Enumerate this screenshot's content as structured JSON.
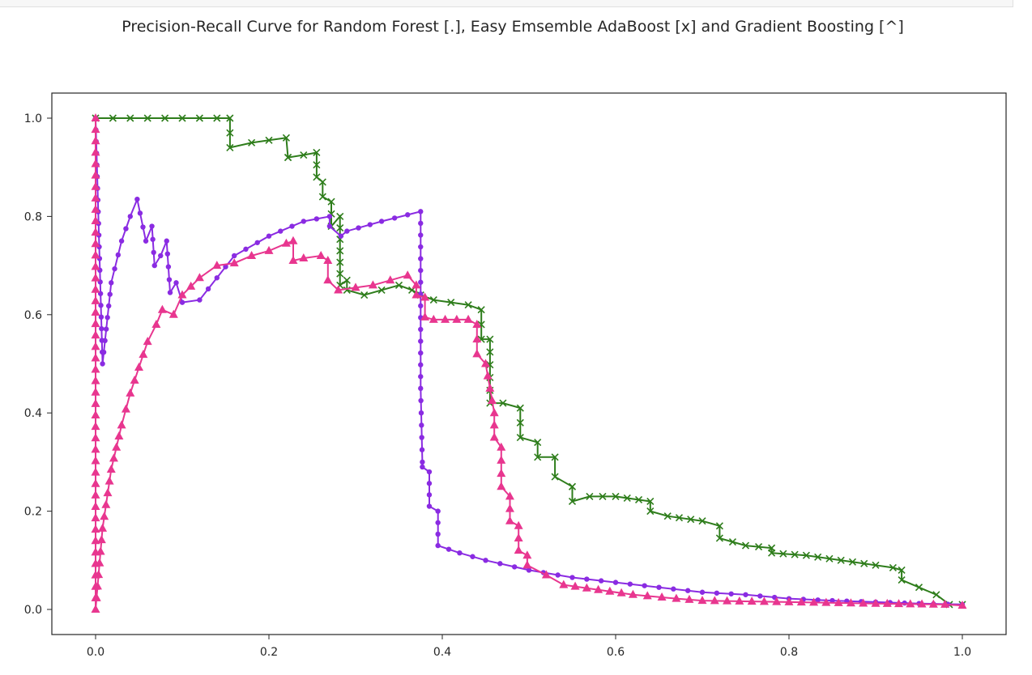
{
  "chart_data": {
    "type": "line",
    "title": "Precision-Recall Curve for Random Forest [.], Easy Emsemble AdaBoost [x] and Gradient Boosting [^]",
    "xlabel": "",
    "ylabel": "",
    "xlim": [
      -0.05,
      1.05
    ],
    "ylim": [
      -0.05,
      1.05
    ],
    "xticks": [
      "0.0",
      "0.2",
      "0.4",
      "0.6",
      "0.8",
      "1.0"
    ],
    "yticks": [
      "0.0",
      "0.2",
      "0.4",
      "0.6",
      "0.8",
      "1.0"
    ],
    "grid": false,
    "series": [
      {
        "marker": "x",
        "color": "#2e7d1b",
        "x": [
          0.0,
          0.02,
          0.04,
          0.06,
          0.08,
          0.1,
          0.12,
          0.14,
          0.155,
          0.155,
          0.18,
          0.2,
          0.22,
          0.222,
          0.222,
          0.24,
          0.255,
          0.255,
          0.262,
          0.262,
          0.272,
          0.272,
          0.282,
          0.282,
          0.29,
          0.29,
          0.31,
          0.33,
          0.35,
          0.365,
          0.375,
          0.39,
          0.41,
          0.43,
          0.445,
          0.445,
          0.455,
          0.455,
          0.47,
          0.49,
          0.49,
          0.51,
          0.51,
          0.53,
          0.53,
          0.55,
          0.55,
          0.57,
          0.6,
          0.64,
          0.64,
          0.66,
          0.7,
          0.72,
          0.72,
          0.75,
          0.78,
          0.78,
          0.82,
          0.86,
          0.9,
          0.92,
          0.93,
          0.93,
          0.95,
          0.97,
          0.985,
          1.0
        ],
        "y": [
          1.0,
          1.0,
          1.0,
          1.0,
          1.0,
          1.0,
          1.0,
          1.0,
          1.0,
          0.94,
          0.95,
          0.955,
          0.96,
          0.92,
          0.92,
          0.925,
          0.93,
          0.88,
          0.87,
          0.84,
          0.83,
          0.78,
          0.8,
          0.66,
          0.67,
          0.65,
          0.64,
          0.65,
          0.66,
          0.65,
          0.64,
          0.63,
          0.625,
          0.62,
          0.61,
          0.55,
          0.55,
          0.42,
          0.42,
          0.41,
          0.35,
          0.34,
          0.31,
          0.31,
          0.27,
          0.25,
          0.22,
          0.23,
          0.23,
          0.22,
          0.2,
          0.19,
          0.18,
          0.17,
          0.145,
          0.13,
          0.125,
          0.115,
          0.11,
          0.1,
          0.09,
          0.085,
          0.08,
          0.06,
          0.045,
          0.03,
          0.01,
          0.01
        ]
      },
      {
        "marker": ".",
        "color": "#8a2be2",
        "x": [
          0.0,
          0.008,
          0.018,
          0.03,
          0.04,
          0.048,
          0.058,
          0.065,
          0.068,
          0.075,
          0.082,
          0.086,
          0.093,
          0.1,
          0.12,
          0.16,
          0.2,
          0.24,
          0.27,
          0.27,
          0.283,
          0.29,
          0.33,
          0.375,
          0.375,
          0.377,
          0.377,
          0.385,
          0.385,
          0.395,
          0.395,
          0.42,
          0.45,
          0.5,
          0.55,
          0.6,
          0.65,
          0.7,
          0.75,
          0.8,
          0.85,
          0.9,
          0.95,
          1.0
        ],
        "y": [
          1.0,
          0.5,
          0.665,
          0.75,
          0.8,
          0.835,
          0.75,
          0.78,
          0.7,
          0.72,
          0.75,
          0.645,
          0.665,
          0.625,
          0.63,
          0.72,
          0.76,
          0.79,
          0.8,
          0.78,
          0.76,
          0.77,
          0.79,
          0.81,
          0.45,
          0.3,
          0.29,
          0.28,
          0.21,
          0.2,
          0.13,
          0.115,
          0.1,
          0.08,
          0.065,
          0.055,
          0.045,
          0.035,
          0.03,
          0.022,
          0.018,
          0.015,
          0.012,
          0.01
        ]
      },
      {
        "marker": "^",
        "color": "#e8368f",
        "x": [
          0.0,
          0.0,
          0.008,
          0.018,
          0.03,
          0.04,
          0.06,
          0.07,
          0.077,
          0.09,
          0.1,
          0.12,
          0.14,
          0.16,
          0.18,
          0.2,
          0.22,
          0.228,
          0.228,
          0.24,
          0.26,
          0.268,
          0.268,
          0.28,
          0.3,
          0.32,
          0.34,
          0.36,
          0.37,
          0.37,
          0.38,
          0.38,
          0.39,
          0.43,
          0.44,
          0.44,
          0.45,
          0.455,
          0.46,
          0.46,
          0.468,
          0.468,
          0.478,
          0.478,
          0.488,
          0.488,
          0.498,
          0.498,
          0.52,
          0.54,
          0.58,
          0.62,
          0.67,
          0.7,
          0.8,
          0.9,
          0.98,
          1.0
        ],
        "y": [
          1.0,
          0.0,
          0.165,
          0.285,
          0.375,
          0.44,
          0.545,
          0.58,
          0.61,
          0.6,
          0.64,
          0.675,
          0.7,
          0.705,
          0.72,
          0.73,
          0.745,
          0.75,
          0.71,
          0.715,
          0.72,
          0.71,
          0.67,
          0.65,
          0.655,
          0.66,
          0.67,
          0.68,
          0.66,
          0.64,
          0.635,
          0.595,
          0.59,
          0.59,
          0.58,
          0.52,
          0.5,
          0.45,
          0.4,
          0.35,
          0.33,
          0.25,
          0.23,
          0.18,
          0.17,
          0.12,
          0.11,
          0.09,
          0.07,
          0.05,
          0.04,
          0.03,
          0.022,
          0.018,
          0.015,
          0.012,
          0.01,
          0.008
        ]
      }
    ]
  }
}
